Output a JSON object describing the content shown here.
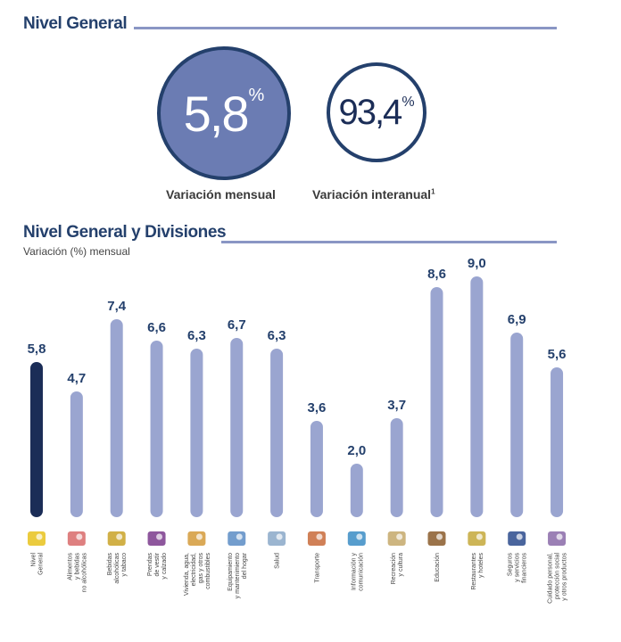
{
  "header": {
    "title": "Nivel General"
  },
  "kpis": {
    "mensual": {
      "value": "5,8",
      "unit": "%",
      "label": "Variación mensual"
    },
    "interanual": {
      "value": "93,4",
      "unit": "%",
      "label": "Variación interanual",
      "footnote": "1"
    }
  },
  "colors": {
    "dark": "#1b2d57",
    "bar": "#9aa5d0",
    "circle_fill": "#6b7cb3",
    "title": "#24406c"
  },
  "chart_data": {
    "type": "bar",
    "title": "Nivel General y Divisiones",
    "subtitle": "Variación (%) mensual",
    "ylim": [
      0,
      9.0
    ],
    "bars": [
      {
        "label": [
          "Nivel",
          "General"
        ],
        "value": 5.8,
        "display": "5,8",
        "icon": "ipc-logo-icon",
        "highlight": true
      },
      {
        "label": [
          "Alimentos",
          "y bebidas",
          "no alcohólicas"
        ],
        "value": 4.7,
        "display": "4,7",
        "icon": "food-icon"
      },
      {
        "label": [
          "Bebidas",
          "alcohólicas",
          "y tabaco"
        ],
        "value": 7.4,
        "display": "7,4",
        "icon": "wine-bottle-icon"
      },
      {
        "label": [
          "Prendas",
          "de vestir",
          "y calzado"
        ],
        "value": 6.6,
        "display": "6,6",
        "icon": "shirt-icon"
      },
      {
        "label": [
          "Vivienda, agua,",
          "electricidad,",
          "gas y otros",
          "combustibles"
        ],
        "value": 6.3,
        "display": "6,3",
        "icon": "house-icon"
      },
      {
        "label": [
          "Equipamiento",
          "y mantenimiento",
          "del hogar"
        ],
        "value": 6.7,
        "display": "6,7",
        "icon": "washing-machine-icon"
      },
      {
        "label": [
          "Salud"
        ],
        "value": 6.3,
        "display": "6,3",
        "icon": "doctor-icon"
      },
      {
        "label": [
          "Transporte"
        ],
        "value": 3.6,
        "display": "3,6",
        "icon": "car-icon"
      },
      {
        "label": [
          "Información y",
          "comunicación"
        ],
        "value": 2.0,
        "display": "2,0",
        "icon": "computer-icon"
      },
      {
        "label": [
          "Recreación",
          "y cultura"
        ],
        "value": 3.7,
        "display": "3,7",
        "icon": "recreation-icon"
      },
      {
        "label": [
          "Educación"
        ],
        "value": 8.6,
        "display": "8,6",
        "icon": "school-icon"
      },
      {
        "label": [
          "Restaurantes",
          "y hoteles"
        ],
        "value": 9.0,
        "display": "9,0",
        "icon": "restaurant-icon"
      },
      {
        "label": [
          "Seguros",
          "y servicios",
          "financieros"
        ],
        "value": 6.9,
        "display": "6,9",
        "icon": "bank-icon"
      },
      {
        "label": [
          "Cuidado personal,",
          "protección social",
          "y otros productos"
        ],
        "value": 5.6,
        "display": "5,6",
        "icon": "personal-care-icon"
      }
    ]
  }
}
